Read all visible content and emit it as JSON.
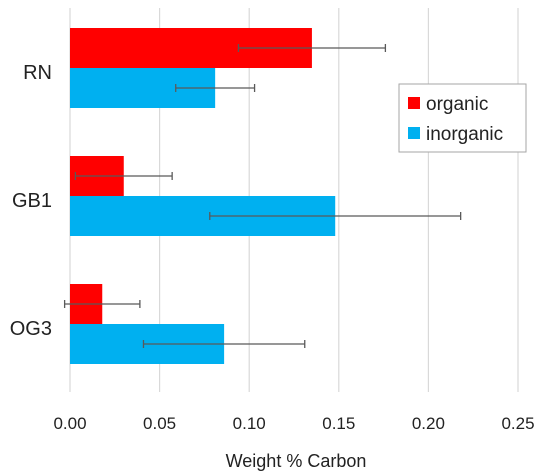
{
  "chart_data": {
    "type": "bar",
    "orientation": "horizontal",
    "categories": [
      "RN",
      "GB1",
      "OG3"
    ],
    "series": [
      {
        "name": "organic",
        "color": "#ff0000",
        "values": [
          0.135,
          0.03,
          0.018
        ],
        "errors": [
          0.041,
          0.027,
          0.021
        ]
      },
      {
        "name": "inorganic",
        "color": "#00b0f0",
        "values": [
          0.081,
          0.148,
          0.086
        ],
        "errors": [
          0.022,
          0.07,
          0.045
        ]
      }
    ],
    "title": "",
    "xlabel": "Weight % Carbon",
    "ylabel": "",
    "xlim": [
      0,
      0.25
    ],
    "xticks": [
      "0.00",
      "0.05",
      "0.10",
      "0.15",
      "0.20",
      "0.25"
    ],
    "grid": "vertical",
    "legend": "right"
  }
}
